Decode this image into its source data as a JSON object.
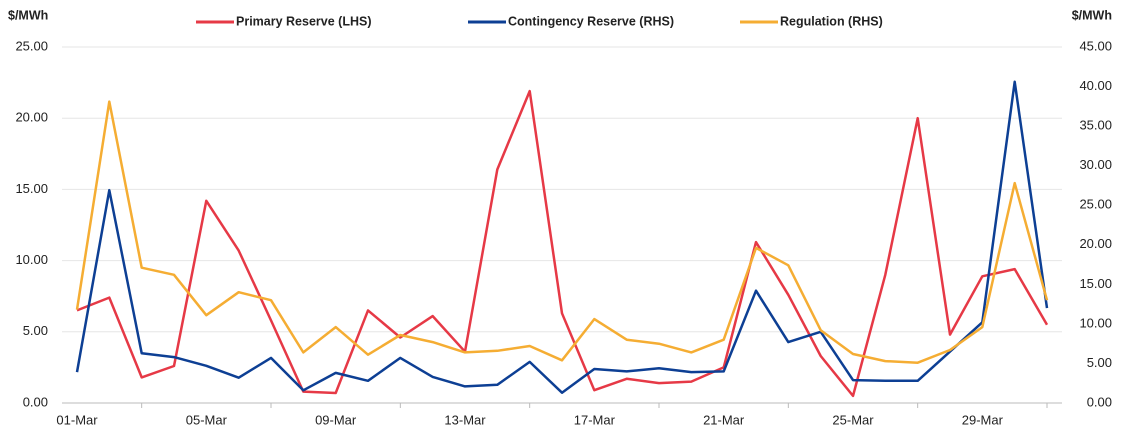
{
  "chart_data": {
    "type": "line",
    "y_label": "$/MWh",
    "y2_label": "$/MWh",
    "categories": [
      "01-Mar",
      null,
      null,
      null,
      "05-Mar",
      null,
      null,
      null,
      "09-Mar",
      null,
      null,
      null,
      "13-Mar",
      null,
      null,
      null,
      "17-Mar",
      null,
      null,
      null,
      "21-Mar",
      null,
      null,
      null,
      "25-Mar",
      null,
      null,
      null,
      "29-Mar",
      null,
      null
    ],
    "series": [
      {
        "name": "Primary Reserve (LHS)",
        "color": "#e63946",
        "axis": "y",
        "values": [
          6.5,
          7.4,
          1.8,
          2.6,
          14.2,
          10.7,
          5.8,
          0.8,
          0.7,
          6.5,
          4.6,
          6.1,
          3.6,
          16.4,
          21.9,
          6.3,
          0.9,
          1.7,
          1.4,
          1.5,
          2.5,
          11.3,
          7.6,
          3.3,
          0.5,
          9.0,
          20.0,
          4.8,
          8.9,
          9.4,
          5.5
        ]
      },
      {
        "name": "Contingency Reserve (RHS)",
        "color": "#0d3f94",
        "axis": "y2",
        "values": [
          3.9,
          26.9,
          6.3,
          5.8,
          4.7,
          3.2,
          5.7,
          1.6,
          3.8,
          2.8,
          5.7,
          3.3,
          2.1,
          2.3,
          5.2,
          1.3,
          4.3,
          4.0,
          4.4,
          3.9,
          4.0,
          14.2,
          7.7,
          9.0,
          2.9,
          2.8,
          2.8,
          6.5,
          10.2,
          40.6,
          12.0
        ]
      },
      {
        "name": "Regulation (RHS)",
        "color": "#f5ad33",
        "axis": "y2",
        "values": [
          11.8,
          38.1,
          17.1,
          16.2,
          11.1,
          14.0,
          13.0,
          6.4,
          9.6,
          6.1,
          8.6,
          7.7,
          6.4,
          6.6,
          7.2,
          5.4,
          10.6,
          8.0,
          7.5,
          6.4,
          8.0,
          19.6,
          17.4,
          9.2,
          6.2,
          5.3,
          5.1,
          6.7,
          9.6,
          27.8,
          13.0
        ]
      }
    ],
    "ylim": [
      0,
      25
    ],
    "yticks": [
      {
        "value": 0,
        "label": "0.00"
      },
      {
        "value": 5,
        "label": "5.00"
      },
      {
        "value": 10,
        "label": "10.00"
      },
      {
        "value": 15,
        "label": "15.00"
      },
      {
        "value": 20,
        "label": "20.00"
      },
      {
        "value": 25,
        "label": "25.00"
      }
    ],
    "y2lim": [
      0,
      45
    ],
    "y2ticks": [
      {
        "value": 0,
        "label": "0.00"
      },
      {
        "value": 5,
        "label": "5.00"
      },
      {
        "value": 10,
        "label": "10.00"
      },
      {
        "value": 15,
        "label": "15.00"
      },
      {
        "value": 20,
        "label": "20.00"
      },
      {
        "value": 25,
        "label": "25.00"
      },
      {
        "value": 30,
        "label": "30.00"
      },
      {
        "value": 35,
        "label": "35.00"
      },
      {
        "value": 40,
        "label": "40.00"
      },
      {
        "value": 45,
        "label": "45.00"
      }
    ],
    "grid": true,
    "legend": "top"
  }
}
